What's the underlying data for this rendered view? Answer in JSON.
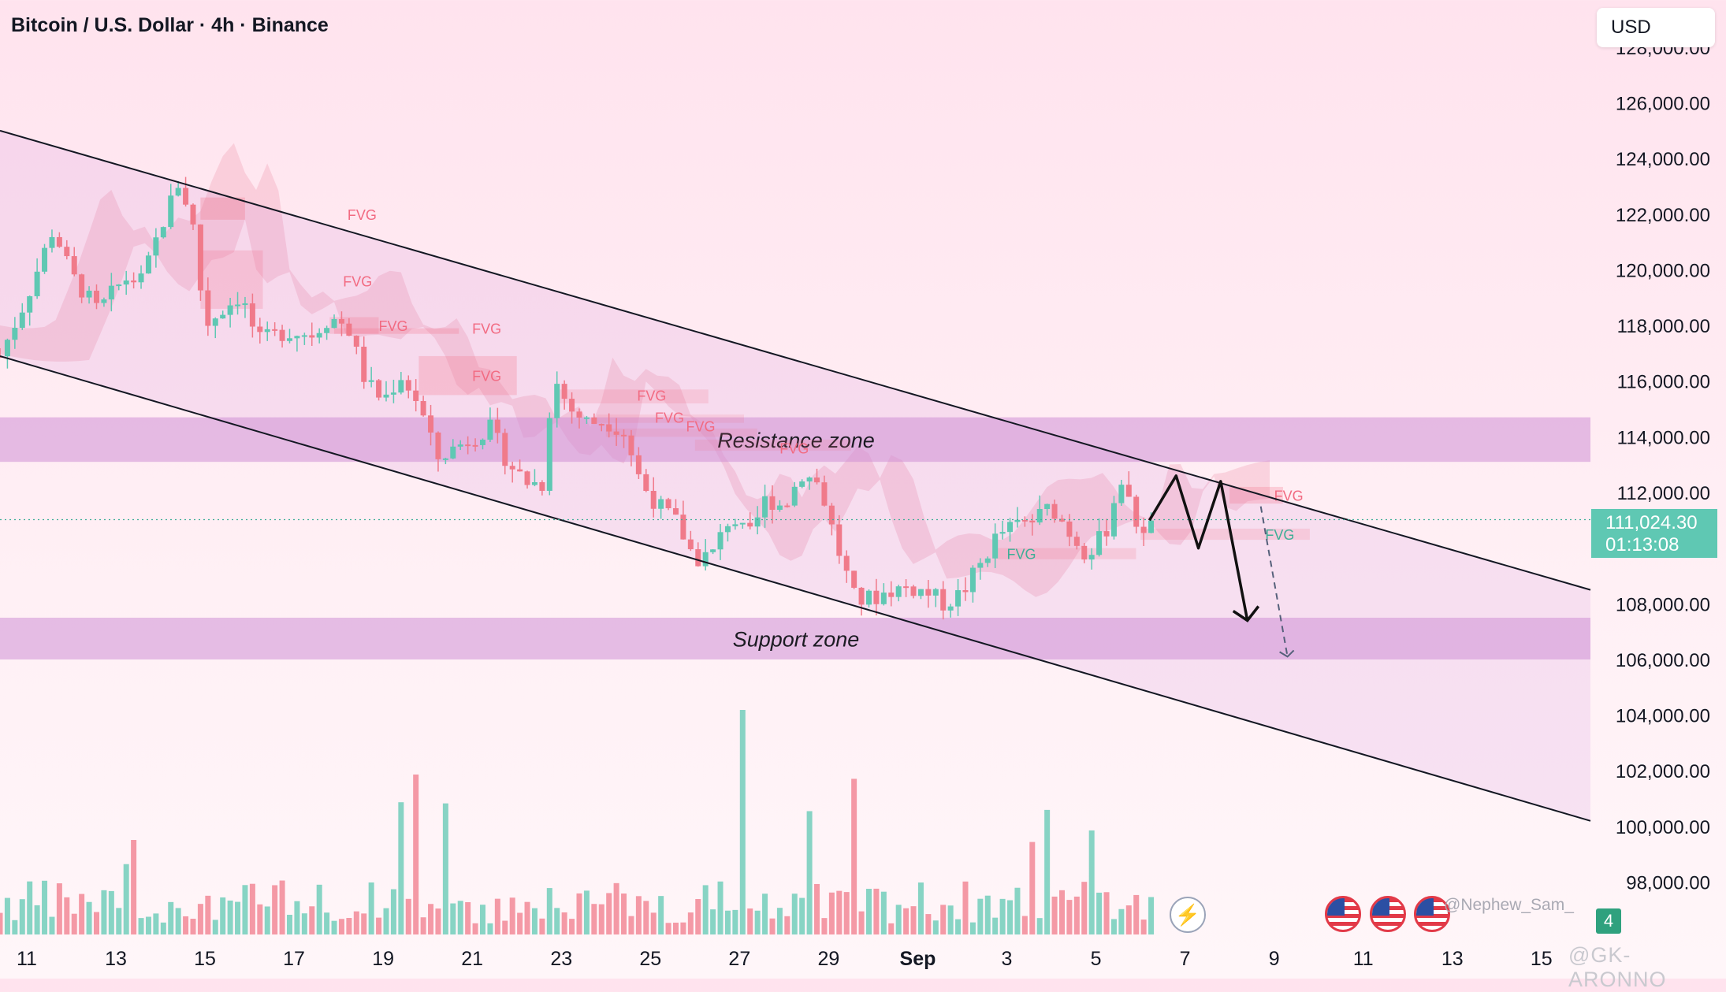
{
  "header": {
    "title": "Bitcoin / U.S. Dollar · 4h · Binance"
  },
  "currency_selector": {
    "label": "USD"
  },
  "last_price": {
    "price": "111,024.30",
    "countdown": "01:13:08"
  },
  "watermarks": {
    "author": "@Nephew_Sam_",
    "source": "@GK-ARONNO"
  },
  "badge": {
    "count": "4"
  },
  "colors": {
    "up": "#5fc8b3",
    "down": "#f07a8a",
    "zone": "#cf8fd6",
    "fvg": "#f26b82",
    "channel": "#131722"
  },
  "chart_data": {
    "type": "candlestick",
    "symbol": "BTCUSD",
    "timeframe": "4h",
    "exchange": "Binance",
    "ylim": [
      96000,
      128000
    ],
    "y_ticks": [
      98000,
      100000,
      102000,
      104000,
      106000,
      108000,
      110000,
      112000,
      114000,
      116000,
      118000,
      120000,
      122000,
      124000,
      126000,
      128000
    ],
    "y_tick_labels": [
      "98,000.00",
      "100,000.00",
      "102,000.00",
      "104,000.00",
      "106,000.00",
      "108,000.00",
      "110,000.00",
      "112,000.00",
      "114,000.00",
      "116,000.00",
      "118,000.00",
      "120,000.00",
      "122,000.00",
      "124,000.00",
      "126,000.00",
      "128,000.00"
    ],
    "x_tick_labels": [
      "11",
      "13",
      "15",
      "17",
      "19",
      "21",
      "23",
      "25",
      "27",
      "29",
      "Sep",
      "3",
      "5",
      "7",
      "9",
      "11",
      "13",
      "15"
    ],
    "x_tick_days": [
      11,
      13,
      15,
      17,
      19,
      21,
      23,
      25,
      27,
      29,
      31,
      33,
      35,
      37,
      39,
      41,
      43,
      45
    ],
    "x_domain_days": [
      10.4,
      46.1
    ],
    "close_path": [
      [
        10.4,
        116900
      ],
      [
        11.0,
        119000
      ],
      [
        11.6,
        121500
      ],
      [
        12.0,
        119800
      ],
      [
        12.6,
        118500
      ],
      [
        13.2,
        119700
      ],
      [
        13.6,
        119600
      ],
      [
        14.0,
        121500
      ],
      [
        14.4,
        123100
      ],
      [
        14.7,
        122000
      ],
      [
        15.0,
        118000
      ],
      [
        15.4,
        118600
      ],
      [
        15.8,
        119100
      ],
      [
        16.2,
        117400
      ],
      [
        16.8,
        117800
      ],
      [
        17.4,
        117700
      ],
      [
        17.8,
        118300
      ],
      [
        18.2,
        118000
      ],
      [
        18.6,
        116000
      ],
      [
        19.0,
        115300
      ],
      [
        19.4,
        116200
      ],
      [
        19.8,
        115200
      ],
      [
        20.2,
        113200
      ],
      [
        20.6,
        113600
      ],
      [
        21.0,
        114000
      ],
      [
        21.4,
        114300
      ],
      [
        21.8,
        113100
      ],
      [
        22.2,
        112400
      ],
      [
        22.6,
        112300
      ],
      [
        22.8,
        116200
      ],
      [
        23.2,
        115000
      ],
      [
        23.6,
        114500
      ],
      [
        24.0,
        114600
      ],
      [
        24.4,
        114200
      ],
      [
        24.8,
        112300
      ],
      [
        25.2,
        111500
      ],
      [
        25.6,
        110900
      ],
      [
        26.0,
        109600
      ],
      [
        26.4,
        109800
      ],
      [
        26.8,
        111200
      ],
      [
        27.2,
        110300
      ],
      [
        27.6,
        111800
      ],
      [
        28.0,
        111500
      ],
      [
        28.4,
        112700
      ],
      [
        28.8,
        112300
      ],
      [
        29.2,
        110000
      ],
      [
        29.6,
        108100
      ],
      [
        30.0,
        108200
      ],
      [
        30.4,
        108500
      ],
      [
        30.8,
        108600
      ],
      [
        31.2,
        108400
      ],
      [
        31.6,
        108000
      ],
      [
        32.0,
        108400
      ],
      [
        32.4,
        109400
      ],
      [
        32.8,
        110500
      ],
      [
        33.2,
        110800
      ],
      [
        33.6,
        111000
      ],
      [
        34.0,
        111500
      ],
      [
        34.4,
        110600
      ],
      [
        34.8,
        109800
      ],
      [
        35.2,
        110500
      ],
      [
        35.4,
        111700
      ],
      [
        35.6,
        112600
      ],
      [
        35.8,
        111100
      ],
      [
        36.0,
        110800
      ],
      [
        36.2,
        110700
      ],
      [
        36.4,
        111000
      ]
    ],
    "volumes_shown": true,
    "annotations": {
      "zones": [
        {
          "name": "Resistance zone",
          "range": [
            113100,
            114700
          ],
          "label": "Resistance zone"
        },
        {
          "name": "Support zone",
          "range": [
            106000,
            107500
          ],
          "label": "Support zone"
        }
      ],
      "fvg_labels": [
        "FVG",
        "FVG",
        "FVG",
        "FVG",
        "FVG",
        "FVG",
        "FVG",
        "FVG",
        "FVG",
        "FVG",
        "FVG",
        "FVG"
      ],
      "descending_channel": {
        "upper": [
          [
            10.4,
            125000
          ],
          [
            46.1,
            108500
          ]
        ],
        "lower": [
          [
            10.4,
            116900
          ],
          [
            46.1,
            100200
          ]
        ]
      },
      "projected_path": [
        [
          36.2,
          111000
        ],
        [
          36.8,
          112600
        ],
        [
          37.3,
          110000
        ],
        [
          37.8,
          112400
        ],
        [
          38.4,
          107400
        ]
      ],
      "dashed_projection": [
        [
          38.7,
          111500
        ],
        [
          39.3,
          106100
        ]
      ]
    }
  }
}
